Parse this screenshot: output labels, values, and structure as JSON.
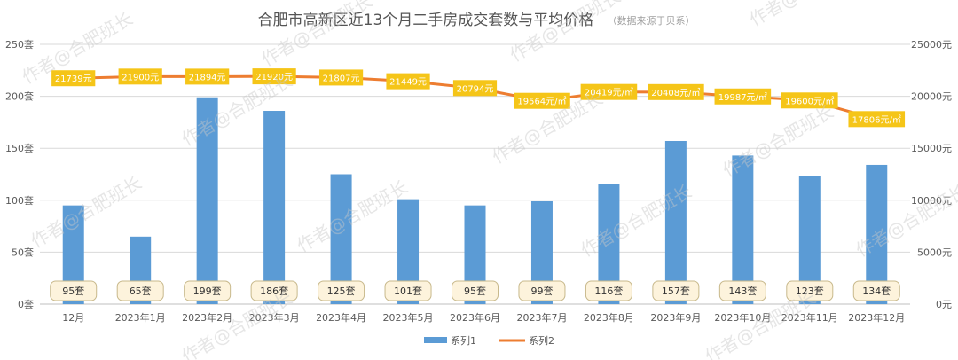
{
  "chart_data": {
    "type": "bar+line",
    "title": "合肥市高新区近13个月二手房成交套数与平均价格",
    "source_note": "（数据来源于贝系）",
    "categories": [
      "12月",
      "2023年1月",
      "2023年2月",
      "2023年3月",
      "2023年4月",
      "2023年5月",
      "2023年6月",
      "2023年7月",
      "2023年8月",
      "2023年9月",
      "2023年10月",
      "2023年11月",
      "2023年12月"
    ],
    "series": [
      {
        "name": "系列1",
        "type": "bar",
        "axis": "left",
        "color": "#5b9bd5",
        "values": [
          95,
          65,
          199,
          186,
          125,
          101,
          95,
          99,
          116,
          157,
          143,
          123,
          134
        ]
      },
      {
        "name": "系列2",
        "type": "line",
        "axis": "right",
        "color": "#ed7d31",
        "values": [
          21739,
          21900,
          21894,
          21920,
          21807,
          21449,
          20794,
          19564,
          20419,
          20408,
          19987,
          19600,
          17806
        ]
      }
    ],
    "bar_labels": [
      "95套",
      "65套",
      "199套",
      "186套",
      "125套",
      "101套",
      "95套",
      "99套",
      "116套",
      "157套",
      "143套",
      "123套",
      "134套"
    ],
    "line_labels": [
      "21739元",
      "21900元",
      "21894元",
      "21920元",
      "21807元",
      "21449元",
      "20794元",
      "19564元/㎡",
      "20419元/㎡",
      "20408元/㎡",
      "19987元/㎡",
      "19600元/㎡",
      "17806元/㎡"
    ],
    "left_axis": {
      "ylim": [
        0,
        250
      ],
      "ticks": [
        "0套",
        "50套",
        "100套",
        "150套",
        "200套",
        "250套"
      ]
    },
    "right_axis": {
      "ylim": [
        0,
        25000
      ],
      "ticks": [
        "0元",
        "5000元",
        "10000元",
        "15000元",
        "20000元",
        "25000元"
      ]
    },
    "grid": true,
    "legend_position": "bottom",
    "label_box_color": "#f5c518",
    "watermark": "作者@合肥班长"
  }
}
